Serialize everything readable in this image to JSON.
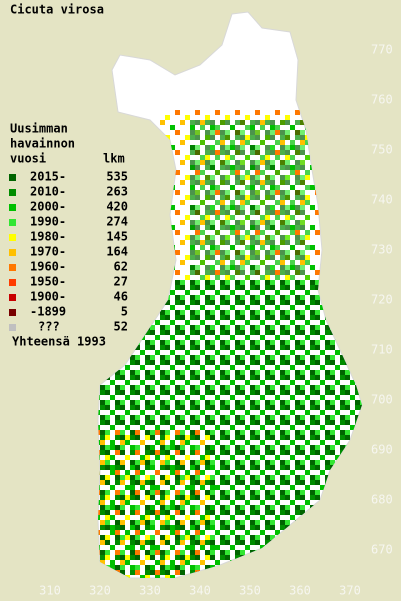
{
  "title": "Cicuta virosa",
  "legend": {
    "header": [
      "Uusimman",
      "havainnon",
      "vuosi"
    ],
    "count_header": "lkm",
    "items": [
      {
        "label": "2015-",
        "count": 535,
        "color": "#006400"
      },
      {
        "label": "2010-",
        "count": 263,
        "color": "#008c00"
      },
      {
        "label": "2000-",
        "count": 420,
        "color": "#00c000"
      },
      {
        "label": "1990-",
        "count": 274,
        "color": "#32e632"
      },
      {
        "label": "1980-",
        "count": 145,
        "color": "#ffff00"
      },
      {
        "label": "1970-",
        "count": 164,
        "color": "#ffc000"
      },
      {
        "label": "1960-",
        "count": 62,
        "color": "#ff7800"
      },
      {
        "label": "1950-",
        "count": 27,
        "color": "#ff3c00"
      },
      {
        "label": "1900-",
        "count": 46,
        "color": "#c80000"
      },
      {
        "label": "-1899",
        "count": 5,
        "color": "#780000"
      },
      {
        "label": "???",
        "count": 52,
        "color": "#c0c0c0"
      }
    ],
    "total": "Yhteensä 1993"
  },
  "map": {
    "xlim": [
      300,
      380
    ],
    "ylim": [
      660,
      780
    ],
    "xticks": [
      310,
      320,
      330,
      340,
      350,
      360,
      370
    ],
    "yticks": [
      670,
      680,
      690,
      700,
      710,
      720,
      730,
      740,
      750,
      760,
      770
    ]
  }
}
